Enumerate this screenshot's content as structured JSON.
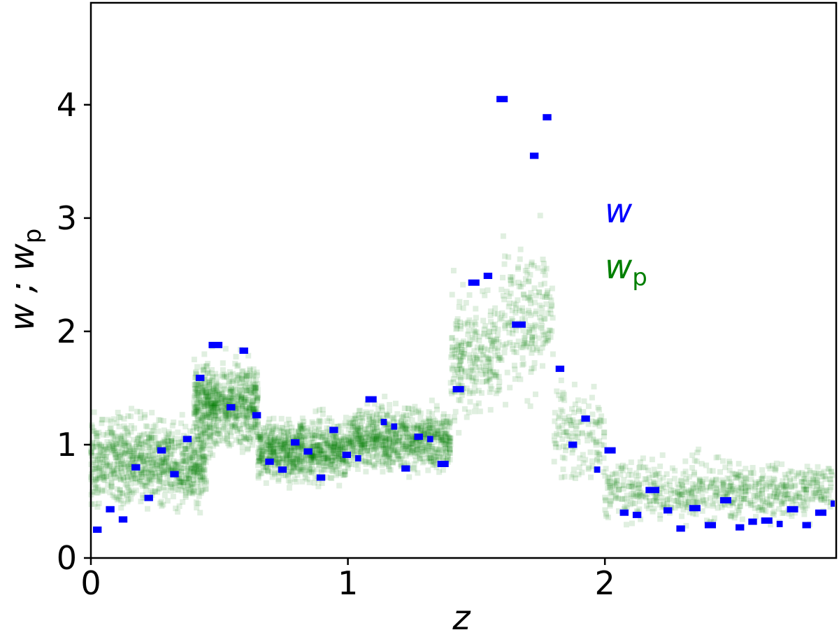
{
  "chart_data": {
    "type": "scatter",
    "xlabel": "z",
    "ylabel_main": "w ; w",
    "ylabel_sub": "p",
    "xlim": [
      0,
      2.9
    ],
    "ylim": [
      0,
      4.9
    ],
    "xticks": [
      0,
      1,
      2
    ],
    "yticks": [
      0,
      1,
      2,
      3,
      4
    ],
    "xtick_labels": [
      "0",
      "1",
      "2"
    ],
    "ytick_labels": [
      "0",
      "1",
      "2",
      "3",
      "4"
    ],
    "grid": false,
    "legend_placement": "center-right",
    "legend": [
      {
        "name": "w",
        "sub": "",
        "color": "#0000ff"
      },
      {
        "name": "w",
        "sub": "p",
        "color": "#007f00"
      }
    ],
    "series": [
      {
        "name": "w",
        "marker": "bin-segment",
        "color": "#0000ff",
        "bins": [
          [
            0.0,
            0.05,
            0.25
          ],
          [
            0.05,
            0.1,
            0.43
          ],
          [
            0.1,
            0.15,
            0.34
          ],
          [
            0.15,
            0.2,
            0.8
          ],
          [
            0.2,
            0.25,
            0.53
          ],
          [
            0.25,
            0.3,
            0.95
          ],
          [
            0.3,
            0.35,
            0.74
          ],
          [
            0.35,
            0.4,
            1.05
          ],
          [
            0.4,
            0.45,
            1.59
          ],
          [
            0.45,
            0.52,
            1.88
          ],
          [
            0.52,
            0.57,
            1.33
          ],
          [
            0.57,
            0.62,
            1.83
          ],
          [
            0.62,
            0.67,
            1.26
          ],
          [
            0.67,
            0.72,
            0.85
          ],
          [
            0.72,
            0.77,
            0.78
          ],
          [
            0.77,
            0.82,
            1.02
          ],
          [
            0.82,
            0.87,
            0.94
          ],
          [
            0.87,
            0.92,
            0.71
          ],
          [
            0.92,
            0.97,
            1.13
          ],
          [
            0.97,
            1.02,
            0.91
          ],
          [
            1.02,
            1.06,
            0.88
          ],
          [
            1.06,
            1.12,
            1.4
          ],
          [
            1.12,
            1.16,
            1.2
          ],
          [
            1.16,
            1.2,
            1.16
          ],
          [
            1.2,
            1.25,
            0.79
          ],
          [
            1.25,
            1.3,
            1.07
          ],
          [
            1.3,
            1.34,
            1.05
          ],
          [
            1.34,
            1.4,
            0.83
          ],
          [
            1.4,
            1.46,
            1.49
          ],
          [
            1.46,
            1.52,
            2.43
          ],
          [
            1.52,
            1.57,
            2.49
          ],
          [
            1.57,
            1.63,
            4.05
          ],
          [
            1.63,
            1.7,
            2.06
          ],
          [
            1.7,
            1.75,
            3.55
          ],
          [
            1.75,
            1.8,
            3.89
          ],
          [
            1.8,
            1.85,
            1.67
          ],
          [
            1.85,
            1.9,
            1.0
          ],
          [
            1.9,
            1.95,
            1.23
          ],
          [
            1.95,
            1.99,
            0.78
          ],
          [
            1.99,
            2.05,
            0.95
          ],
          [
            2.05,
            2.1,
            0.4
          ],
          [
            2.1,
            2.15,
            0.38
          ],
          [
            2.15,
            2.22,
            0.6
          ],
          [
            2.22,
            2.27,
            0.42
          ],
          [
            2.27,
            2.32,
            0.26
          ],
          [
            2.32,
            2.38,
            0.44
          ],
          [
            2.38,
            2.44,
            0.29
          ],
          [
            2.44,
            2.5,
            0.51
          ],
          [
            2.5,
            2.55,
            0.27
          ],
          [
            2.55,
            2.6,
            0.32
          ],
          [
            2.6,
            2.66,
            0.33
          ],
          [
            2.66,
            2.7,
            0.3
          ],
          [
            2.7,
            2.76,
            0.43
          ],
          [
            2.76,
            2.81,
            0.29
          ],
          [
            2.81,
            2.87,
            0.4
          ],
          [
            2.87,
            2.9,
            0.48
          ]
        ]
      },
      {
        "name": "w_p",
        "marker": "square",
        "color": "#007f00",
        "opacity": 0.12,
        "density_regions": [
          {
            "x_range": [
              0.0,
              0.45
            ],
            "y_center": 0.85,
            "y_spread": 0.35,
            "count": 900
          },
          {
            "x_range": [
              0.4,
              0.65
            ],
            "y_center": 1.35,
            "y_spread": 0.35,
            "count": 700
          },
          {
            "x_range": [
              0.65,
              1.0
            ],
            "y_center": 0.95,
            "y_spread": 0.25,
            "count": 800
          },
          {
            "x_range": [
              1.0,
              1.4
            ],
            "y_center": 1.05,
            "y_spread": 0.25,
            "count": 800
          },
          {
            "x_range": [
              1.4,
              1.6
            ],
            "y_center": 1.8,
            "y_spread": 0.5,
            "count": 260
          },
          {
            "x_range": [
              1.6,
              1.8
            ],
            "y_center": 2.1,
            "y_spread": 0.6,
            "count": 200
          },
          {
            "x_range": [
              1.8,
              2.0
            ],
            "y_center": 1.1,
            "y_spread": 0.4,
            "count": 140
          },
          {
            "x_range": [
              2.0,
              2.9
            ],
            "y_center": 0.6,
            "y_spread": 0.25,
            "count": 700
          }
        ]
      }
    ]
  }
}
